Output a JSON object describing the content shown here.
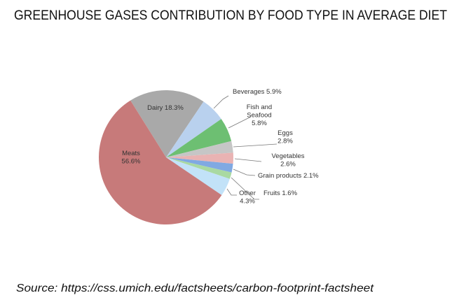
{
  "chart_data": {
    "type": "pie",
    "title": "GREENHOUSE GASES CONTRIBUTION BY FOOD TYPE IN AVERAGE DIET",
    "source": "Source: https://css.umich.edu/factsheets/carbon-footprint-factsheet",
    "slices": [
      {
        "label": "Dairy",
        "value": 18.3,
        "text": [
          "Dairy 18.3%"
        ],
        "color": "#a9a9a9"
      },
      {
        "label": "Beverages",
        "value": 5.9,
        "text": [
          "Beverages 5.9%"
        ],
        "color": "#b9d1ee"
      },
      {
        "label": "Fish and Seafood",
        "value": 5.8,
        "text": [
          "Fish and",
          "Seafood",
          "5.8%"
        ],
        "color": "#6dbf72"
      },
      {
        "label": "Eggs",
        "value": 2.8,
        "text": [
          "Eggs",
          "2.8%"
        ],
        "color": "#c6c6c6"
      },
      {
        "label": "Vegetables",
        "value": 2.6,
        "text": [
          "Vegetables",
          "2.6%"
        ],
        "color": "#e9b3b3"
      },
      {
        "label": "Grain products",
        "value": 2.1,
        "text": [
          "Grain products 2.1%"
        ],
        "color": "#80a9e2"
      },
      {
        "label": "Fruits",
        "value": 1.6,
        "text": [
          "Fruits 1.6%"
        ],
        "color": "#a9d9a2"
      },
      {
        "label": "Other",
        "value": 4.3,
        "text": [
          "Other",
          "4.3%"
        ],
        "color": "#c2e2f8"
      },
      {
        "label": "Meats",
        "value": 56.6,
        "text": [
          "Meats",
          "56.6%"
        ],
        "color": "#c77a7a"
      }
    ]
  }
}
